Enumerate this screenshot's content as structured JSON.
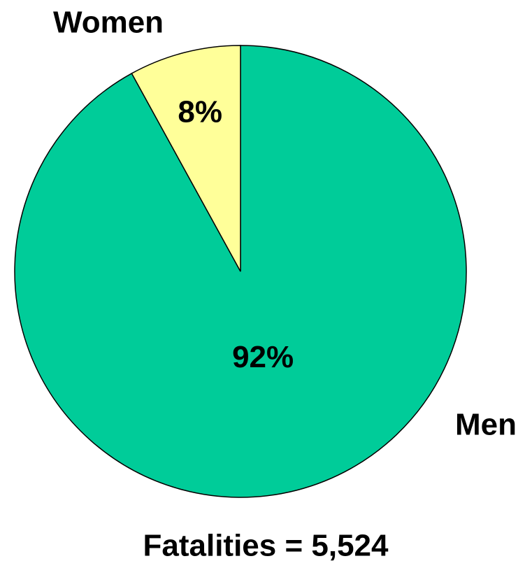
{
  "chart_data": {
    "type": "pie",
    "categories": [
      "Men",
      "Women"
    ],
    "values": [
      92,
      8
    ],
    "value_labels": [
      "92%",
      "8%"
    ],
    "colors": [
      "#00cc99",
      "#ffff99"
    ],
    "caption": "Fatalities = 5,524"
  }
}
